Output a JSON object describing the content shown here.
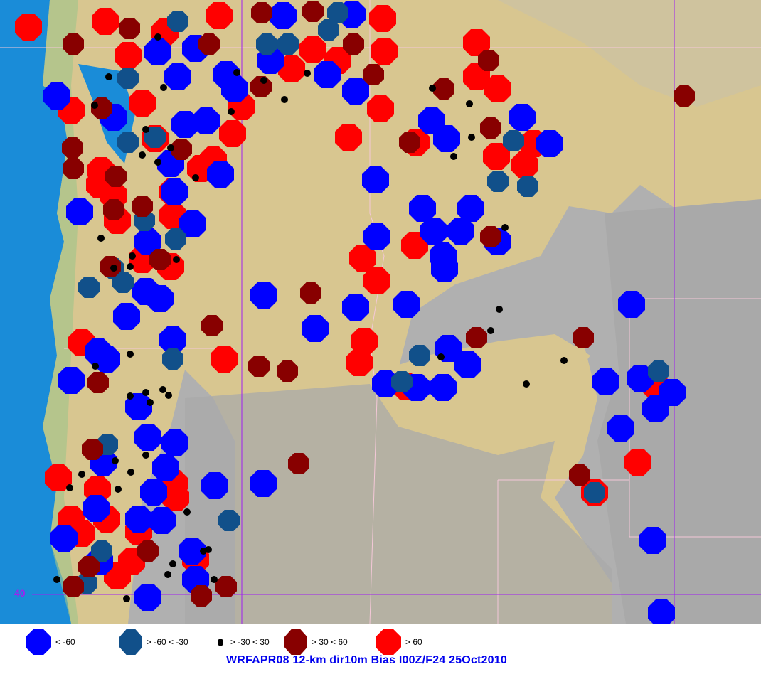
{
  "title": "WRFAPR08 12-km dir10m Bias I00Z/F24 25Oct2010",
  "latitude_label": "40",
  "colors": {
    "ocean": "#1a8cd8",
    "lowland": "#d8c690",
    "terrain_gray": "#a9a9a9",
    "grid_line": "#a020f0",
    "border_line": "#f4c8d8"
  },
  "legend": [
    {
      "label": "< -60",
      "color": "#0000ff",
      "icon": "large-octagon"
    },
    {
      "label": "> -60 < -30",
      "color": "#11508a",
      "icon": "medium-octagon"
    },
    {
      "label": "> -30 < 30",
      "color": "#000000",
      "icon": "small-dot"
    },
    {
      "label": "> 30 < 60",
      "color": "#880000",
      "icon": "medium-octagon"
    },
    {
      "label": "> 60",
      "color": "#ff0000",
      "icon": "large-octagon"
    }
  ]
}
